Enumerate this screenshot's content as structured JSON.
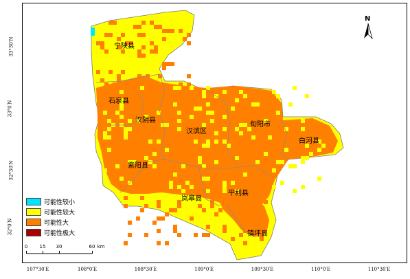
{
  "map": {
    "counties": [
      {
        "name": "宁陕县"
      },
      {
        "name": "石泉县"
      },
      {
        "name": "汉阴县"
      },
      {
        "name": "汉滨区"
      },
      {
        "name": "旬阳市"
      },
      {
        "name": "白河县"
      },
      {
        "name": "紫阳县"
      },
      {
        "name": "平利县"
      },
      {
        "name": "岚皋县"
      },
      {
        "name": "镇坪县"
      }
    ],
    "north_label": "N",
    "x_ticks": [
      "107°30′E",
      "108°0′E",
      "108°30′E",
      "109°0′E",
      "109°30′E",
      "110°0′E",
      "110°30′E"
    ],
    "y_ticks": [
      "33°30′N",
      "33°0′N",
      "32°30′N",
      "32°0′N"
    ],
    "legend": [
      {
        "label": "可能性较小",
        "color": "#00e5ff"
      },
      {
        "label": "可能性较大",
        "color": "#ffff00"
      },
      {
        "label": "可能性大",
        "color": "#ff8000"
      },
      {
        "label": "可能性极大",
        "color": "#a80000"
      }
    ],
    "scale": {
      "ticks": [
        "0",
        "15",
        "30",
        "60"
      ],
      "unit": "km"
    }
  }
}
